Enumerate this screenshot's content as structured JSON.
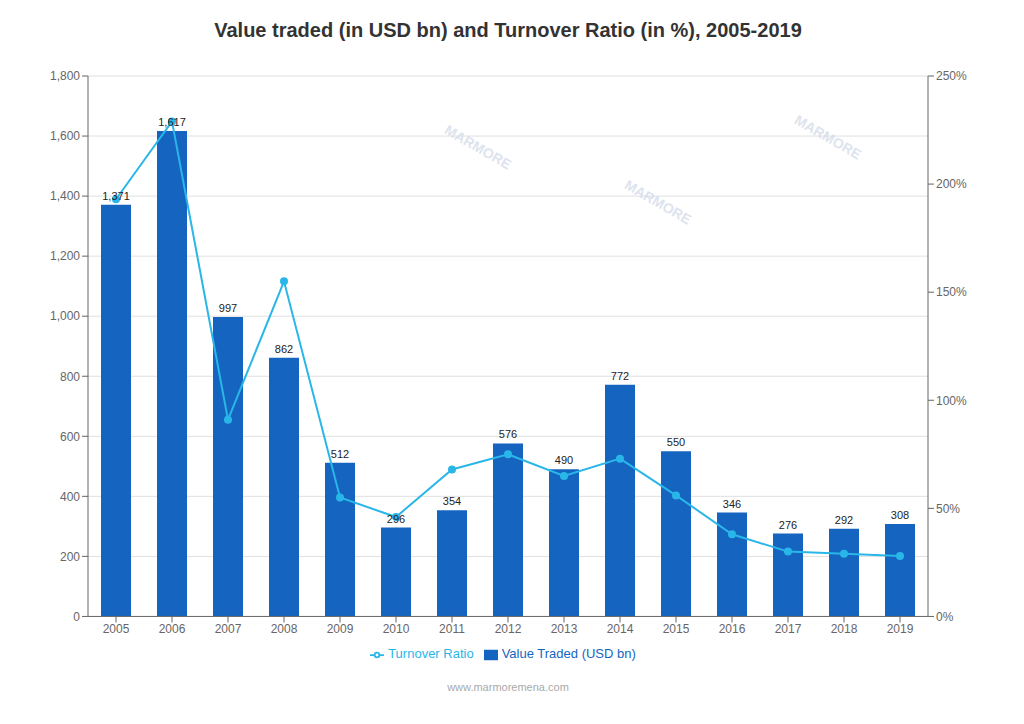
{
  "chart_data": {
    "type": "bar",
    "title": "Value traded (in USD bn) and Turnover Ratio (in %), 2005-2019",
    "categories": [
      "2005",
      "2006",
      "2007",
      "2008",
      "2009",
      "2010",
      "2011",
      "2012",
      "2013",
      "2014",
      "2015",
      "2016",
      "2017",
      "2018",
      "2019"
    ],
    "series": [
      {
        "name": "Value Traded (USD bn)",
        "type": "bar",
        "color": "#1565c0",
        "values": [
          1371,
          1617,
          997,
          862,
          512,
          296,
          354,
          576,
          490,
          772,
          550,
          346,
          276,
          292,
          308
        ],
        "value_labels": [
          "1,371",
          "1,617",
          "997",
          "862",
          "512",
          "296",
          "354",
          "576",
          "490",
          "772",
          "550",
          "346",
          "276",
          "292",
          "308"
        ],
        "data_labels": true
      },
      {
        "name": "Turnover Ratio",
        "type": "line",
        "color": "#29b6e8",
        "marker": "circle",
        "axis": "y2",
        "values": [
          193,
          229,
          91,
          155,
          55,
          46,
          68,
          75,
          65,
          73,
          56,
          38,
          30,
          29,
          28
        ]
      }
    ],
    "ylim": [
      0,
      1800
    ],
    "yticks": [
      0,
      200,
      400,
      600,
      800,
      {
        "value": 1000,
        "label": "1,000"
      },
      {
        "value": 1200,
        "label": "1,200"
      },
      {
        "value": 1400,
        "label": "1,400"
      },
      {
        "value": 1600,
        "label": "1,600"
      },
      {
        "value": 1800,
        "label": "1,800"
      }
    ],
    "y2lim": [
      0,
      250
    ],
    "y2ticks": [
      {
        "value": 0,
        "label": "0%"
      },
      {
        "value": 50,
        "label": "50%"
      },
      {
        "value": 100,
        "label": "100%"
      },
      {
        "value": 150,
        "label": "150%"
      },
      {
        "value": 200,
        "label": "200%"
      },
      {
        "value": 250,
        "label": "250%"
      }
    ],
    "grid": true,
    "legend": "bottom",
    "watermark": "MARMORE",
    "footer": "www.marmoremena.com"
  }
}
